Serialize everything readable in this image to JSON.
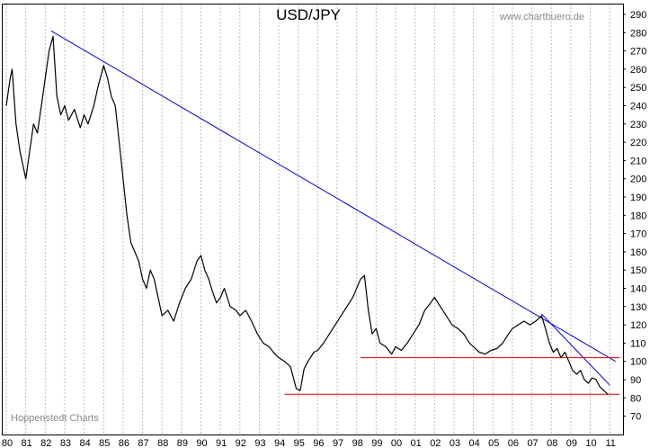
{
  "chart_data": {
    "type": "line",
    "title": "USD/JPY",
    "source_label": "www.chartbuero.de",
    "credit_label": "Hoppenstedt Charts",
    "xlabel": "",
    "ylabel": "",
    "xlim": [
      1980,
      2011.5
    ],
    "ylim": [
      60,
      295
    ],
    "grid": "vertical dashed",
    "y_ticks": [
      290,
      280,
      270,
      260,
      250,
      240,
      230,
      220,
      210,
      200,
      190,
      180,
      170,
      160,
      150,
      140,
      130,
      120,
      110,
      100,
      90,
      80,
      70
    ],
    "x_tick_labels": [
      "80",
      "81",
      "82",
      "83",
      "84",
      "85",
      "86",
      "87",
      "88",
      "89",
      "90",
      "91",
      "92",
      "93",
      "94",
      "95",
      "96",
      "97",
      "98",
      "99",
      "00",
      "01",
      "02",
      "03",
      "04",
      "05",
      "06",
      "07",
      "08",
      "09",
      "10",
      "11"
    ],
    "colors": {
      "price": "#000000",
      "trendline": "#0000cc",
      "support": "#dd0000",
      "grid": "#bbbbbb"
    },
    "series": [
      {
        "x": [
          1980.0,
          1980.2,
          1980.3,
          1980.5,
          1980.7,
          1980.9,
          1981.0,
          1981.2,
          1981.4,
          1981.6,
          1981.8,
          1982.0,
          1982.2,
          1982.4,
          1982.6,
          1982.8,
          1983.0,
          1983.2,
          1983.5,
          1983.8,
          1984.0,
          1984.2,
          1984.5,
          1984.7,
          1985.0,
          1985.2,
          1985.4,
          1985.6,
          1985.8,
          1986.0,
          1986.2,
          1986.4,
          1986.6,
          1986.8,
          1987.0,
          1987.2,
          1987.4,
          1987.6,
          1987.8,
          1988.0,
          1988.3,
          1988.6,
          1988.9,
          1989.2,
          1989.5,
          1989.8,
          1990.0,
          1990.2,
          1990.4,
          1990.6,
          1990.8,
          1991.0,
          1991.2,
          1991.5,
          1991.8,
          1992.0,
          1992.3,
          1992.6,
          1992.9,
          1993.2,
          1993.5,
          1993.8,
          1994.0,
          1994.3,
          1994.6,
          1994.9,
          1995.1,
          1995.3,
          1995.5,
          1995.8,
          1996.0,
          1996.3,
          1996.6,
          1996.9,
          1997.2,
          1997.5,
          1997.8,
          1998.0,
          1998.2,
          1998.4,
          1998.6,
          1998.8,
          1999.0,
          1999.2,
          1999.5,
          1999.8,
          2000.0,
          2000.3,
          2000.6,
          2000.9,
          2001.2,
          2001.5,
          2001.8,
          2002.0,
          2002.3,
          2002.6,
          2002.9,
          2003.2,
          2003.5,
          2003.8,
          2004.0,
          2004.3,
          2004.6,
          2004.9,
          2005.2,
          2005.5,
          2005.8,
          2006.0,
          2006.3,
          2006.6,
          2006.9,
          2007.2,
          2007.5,
          2007.7,
          2007.9,
          2008.1,
          2008.3,
          2008.5,
          2008.7,
          2008.9,
          2009.1,
          2009.3,
          2009.5,
          2009.7,
          2009.9,
          2010.1,
          2010.3,
          2010.5,
          2010.7,
          2010.9
        ],
        "y": [
          240,
          255,
          260,
          230,
          215,
          205,
          200,
          215,
          230,
          225,
          240,
          255,
          270,
          278,
          245,
          235,
          240,
          232,
          238,
          228,
          235,
          230,
          240,
          250,
          262,
          255,
          245,
          240,
          220,
          200,
          180,
          165,
          160,
          155,
          145,
          140,
          150,
          145,
          135,
          125,
          128,
          122,
          132,
          140,
          145,
          155,
          158,
          150,
          145,
          138,
          132,
          135,
          140,
          130,
          128,
          125,
          128,
          122,
          115,
          110,
          108,
          104,
          102,
          100,
          97,
          85,
          84,
          96,
          100,
          105,
          106,
          110,
          115,
          120,
          125,
          130,
          135,
          140,
          145,
          147,
          128,
          115,
          118,
          110,
          108,
          104,
          108,
          106,
          110,
          115,
          120,
          128,
          132,
          135,
          130,
          125,
          120,
          118,
          115,
          110,
          108,
          105,
          104,
          106,
          107,
          110,
          115,
          118,
          120,
          122,
          120,
          122,
          125,
          118,
          110,
          105,
          107,
          102,
          105,
          100,
          95,
          93,
          95,
          90,
          88,
          91,
          90,
          86,
          84,
          82
        ]
      }
    ],
    "lines": [
      {
        "name": "",
        "from": [
          1982.3,
          281
        ],
        "to": [
          2011.3,
          100
        ],
        "color": "#0000cc"
      },
      {
        "name": "",
        "from": [
          2007.5,
          126
        ],
        "to": [
          2011.0,
          87
        ],
        "color": "#0000cc"
      },
      {
        "name": "",
        "from": [
          1998.2,
          102
        ],
        "to": [
          2011.5,
          102
        ],
        "color": "#dd0000"
      },
      {
        "name": "",
        "from": [
          1994.3,
          82
        ],
        "to": [
          2011.5,
          82
        ],
        "color": "#dd0000"
      }
    ]
  }
}
